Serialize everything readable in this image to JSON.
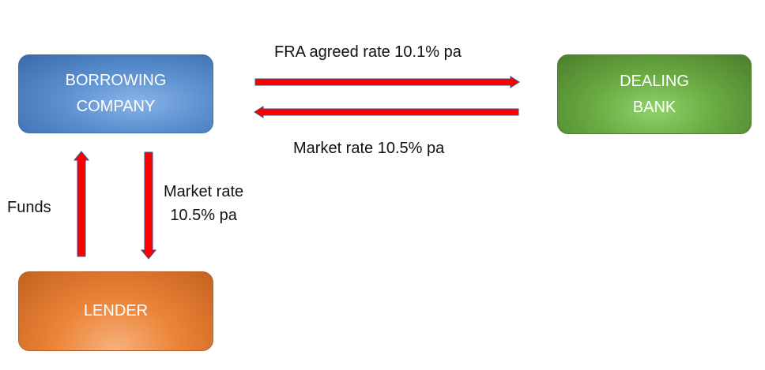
{
  "nodes": {
    "borrower": {
      "line1": "BORROWING",
      "line2": "COMPANY"
    },
    "bank": {
      "line1": "DEALING",
      "line2": "BANK"
    },
    "lender": {
      "line1": "LENDER"
    }
  },
  "edges": {
    "fra": {
      "label": "FRA agreed rate 10.1% pa"
    },
    "market_h": {
      "label": "Market rate 10.5% pa"
    },
    "funds": {
      "label": "Funds"
    },
    "market_v": {
      "line1": "Market rate",
      "line2": "10.5% pa"
    }
  },
  "colors": {
    "arrow_fill": "#ff0000",
    "arrow_outline": "#2f5597",
    "borrower": "#5b8fd0",
    "bank": "#6aab42",
    "lender": "#ec8438"
  }
}
